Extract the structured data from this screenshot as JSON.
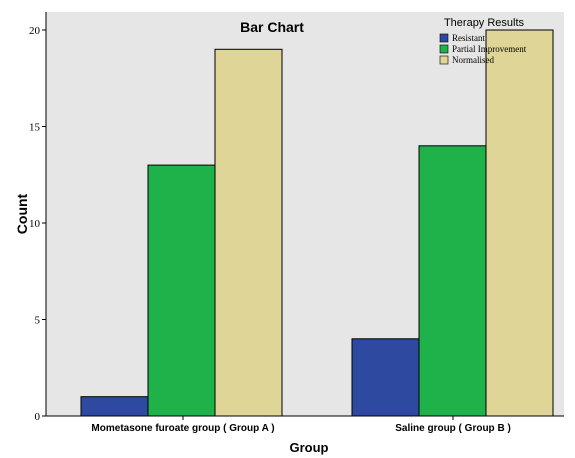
{
  "chart_data": {
    "type": "bar",
    "title": "Bar Chart",
    "xlabel": "Group",
    "ylabel": "Count",
    "categories": [
      "Mometasone furoate group  ( Group A )",
      "Saline group ( Group B )"
    ],
    "series": [
      {
        "name": "Resistant",
        "values": [
          1,
          4
        ],
        "color": "#2e4aa0"
      },
      {
        "name": "Partial Improvement",
        "values": [
          13,
          14
        ],
        "color": "#1fb24a"
      },
      {
        "name": "Normalised",
        "values": [
          19,
          20
        ],
        "color": "#ded597"
      }
    ],
    "ylim": [
      0,
      20
    ],
    "yticks": [
      0,
      5,
      10,
      15,
      20
    ],
    "yticklabels": [
      "0",
      "5",
      "10",
      "15",
      "20"
    ],
    "legend": {
      "title": "Therapy Results",
      "position": "top-right"
    },
    "grid": false,
    "background": "#e6e6e6"
  }
}
